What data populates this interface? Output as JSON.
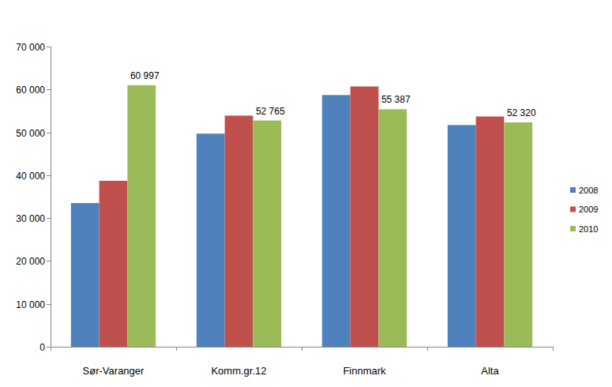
{
  "chart_data": {
    "type": "bar",
    "categories": [
      "Sør-Varanger",
      "Komm.gr.12",
      "Finnmark",
      "Alta"
    ],
    "series": [
      {
        "name": "2008",
        "color": "#4f81bd",
        "values": [
          33500,
          49700,
          58700,
          51700
        ]
      },
      {
        "name": "2009",
        "color": "#c0504d",
        "values": [
          38700,
          53900,
          60700,
          53700
        ]
      },
      {
        "name": "2010",
        "color": "#9bbb59",
        "values": [
          60997,
          52765,
          55387,
          52320
        ],
        "data_labels": true,
        "value_labels": [
          "60 997",
          "52 765",
          "55 387",
          "52 320"
        ]
      }
    ],
    "ylim": [
      0,
      70000
    ],
    "yticks": [
      0,
      {
        "value": 10000,
        "label": "10 000"
      },
      {
        "value": 20000,
        "label": "20 000"
      },
      {
        "value": 30000,
        "label": "30 000"
      },
      {
        "value": 40000,
        "label": "40 000"
      },
      {
        "value": 50000,
        "label": "50 000"
      },
      {
        "value": 60000,
        "label": "60 000"
      },
      {
        "value": 70000,
        "label": "70 000"
      }
    ],
    "grid": false,
    "legend": "right"
  }
}
